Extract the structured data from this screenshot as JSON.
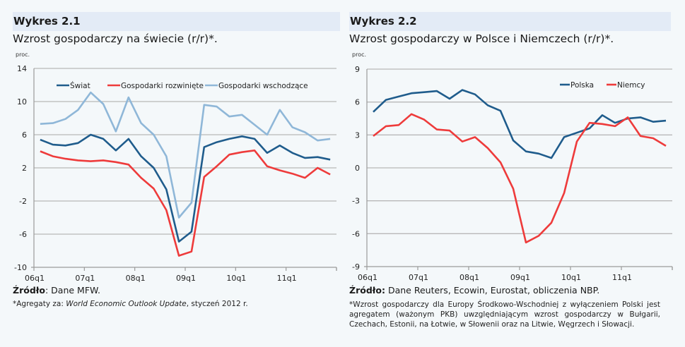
{
  "charts": [
    {
      "header": "Wykres 2.1",
      "subtitle": "Wzrost gospodarczy na świecie (r/r)*.",
      "unit": "proc.",
      "source_label": "Źródło",
      "source_text": ": Dane MFW.",
      "note_prefix": "*Agregaty za: ",
      "note_italic": "World Economic Outlook Update",
      "note_suffix": ", styczeń 2012 r."
    },
    {
      "header": "Wykres 2.2",
      "subtitle": "Wzrost gospodarczy w Polsce i Niemczech (r/r)*.",
      "unit": "proc.",
      "source_label": "Źródło:",
      "source_text": " Dane Reuters, Ecowin, Eurostat, obliczenia NBP.",
      "note_text": "*Wzrost gospodarczy dla Europy Środkowo-Wschodniej z wyłączeniem Polski jest agregatem (ważonym PKB) uwzględniającym wzrost gospodarczy w Bułgarii, Czechach, Estonii, na Łotwie, w Słowenii oraz na Litwie, Węgrzech i Słowacji."
    }
  ],
  "chart_data": [
    {
      "type": "line",
      "title": "Wzrost gospodarczy na świecie (r/r)*.",
      "ylabel": "proc.",
      "xlabel": "",
      "ylim": [
        -10,
        14
      ],
      "yticks": [
        14,
        10,
        6,
        2,
        -2,
        -6,
        -10
      ],
      "xtick_labels": [
        "06q1",
        "07q1",
        "08q1",
        "09q1",
        "10q1",
        "11q1"
      ],
      "grid": true,
      "legend": "top",
      "x": [
        "06q1",
        "06q2",
        "06q3",
        "06q4",
        "07q1",
        "07q2",
        "07q3",
        "07q4",
        "08q1",
        "08q2",
        "08q3",
        "08q4",
        "09q1",
        "09q2",
        "09q3",
        "09q4",
        "10q1",
        "10q2",
        "10q3",
        "10q4",
        "11q1",
        "11q2",
        "11q3",
        "11q4"
      ],
      "series": [
        {
          "name": "Świat",
          "color": "#1f5c8c",
          "values": [
            5.4,
            4.8,
            4.7,
            5.0,
            6.0,
            5.5,
            4.1,
            5.5,
            3.4,
            2.0,
            -0.6,
            -6.9,
            -5.7,
            4.5,
            5.1,
            5.5,
            5.8,
            5.5,
            3.8,
            4.7,
            3.8,
            3.2,
            3.3,
            3.0
          ]
        },
        {
          "name": "Gospodarki rozwinięte",
          "color": "#ee3b3b",
          "values": [
            4.0,
            3.4,
            3.1,
            2.9,
            2.8,
            2.9,
            2.7,
            2.4,
            0.8,
            -0.5,
            -3.1,
            -8.6,
            -8.1,
            0.9,
            2.2,
            3.6,
            3.9,
            4.1,
            2.2,
            1.7,
            1.3,
            0.8,
            2.0,
            1.2
          ]
        },
        {
          "name": "Gospodarki wschodzące",
          "color": "#8fb7d8",
          "values": [
            7.3,
            7.4,
            7.9,
            9.0,
            11.1,
            9.7,
            6.4,
            10.5,
            7.4,
            6.0,
            3.4,
            -4.0,
            -2.2,
            9.6,
            9.4,
            8.2,
            8.4,
            7.2,
            6.0,
            9.0,
            6.9,
            6.3,
            5.3,
            5.5
          ]
        }
      ]
    },
    {
      "type": "line",
      "title": "Wzrost gospodarczy w Polsce i Niemczech (r/r)*.",
      "ylabel": "proc.",
      "xlabel": "",
      "ylim": [
        -9,
        9
      ],
      "yticks": [
        9,
        6,
        3,
        0,
        -3,
        -6,
        -9
      ],
      "xtick_labels": [
        "06q1",
        "07q1",
        "08q1",
        "09q1",
        "10q1",
        "11q1"
      ],
      "grid": true,
      "legend": "top-right",
      "x": [
        "06q1",
        "06q2",
        "06q3",
        "06q4",
        "07q1",
        "07q2",
        "07q3",
        "07q4",
        "08q1",
        "08q2",
        "08q3",
        "08q4",
        "09q1",
        "09q2",
        "09q3",
        "09q4",
        "10q1",
        "10q2",
        "10q3",
        "10q4",
        "11q1",
        "11q2",
        "11q3",
        "11q4"
      ],
      "series": [
        {
          "name": "Polska",
          "color": "#1f5c8c",
          "values": [
            5.1,
            6.2,
            6.5,
            6.8,
            6.9,
            7.0,
            6.3,
            7.1,
            6.7,
            5.7,
            5.2,
            2.5,
            1.5,
            1.3,
            0.9,
            2.8,
            3.2,
            3.6,
            4.8,
            4.1,
            4.5,
            4.6,
            4.2,
            4.3
          ]
        },
        {
          "name": "Niemcy",
          "color": "#ee3b3b",
          "values": [
            2.9,
            3.8,
            3.9,
            4.9,
            4.4,
            3.5,
            3.4,
            2.4,
            2.8,
            1.8,
            0.5,
            -1.9,
            -6.8,
            -6.2,
            -5.0,
            -2.3,
            2.4,
            4.1,
            4.0,
            3.8,
            4.6,
            2.9,
            2.7,
            2.0
          ]
        }
      ]
    }
  ]
}
